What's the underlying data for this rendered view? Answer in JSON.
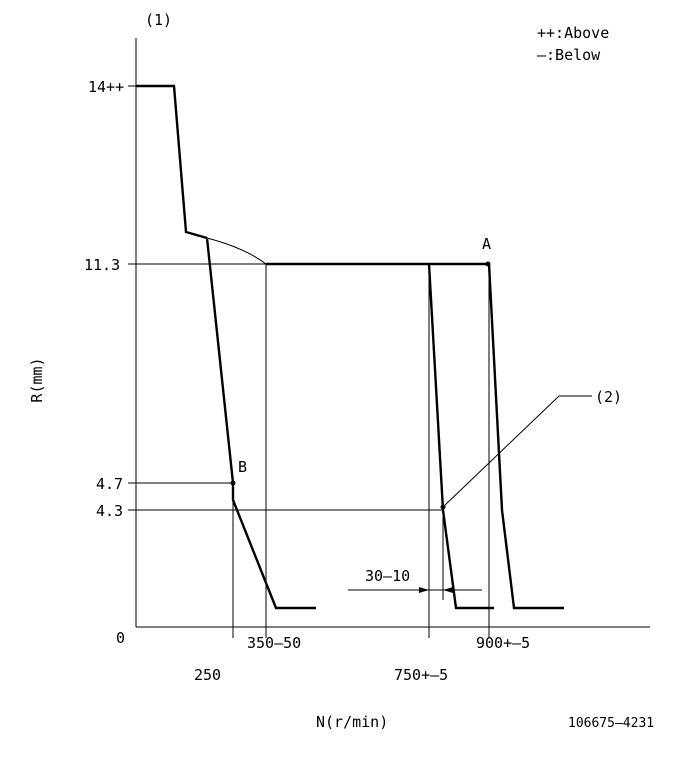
{
  "labels": {
    "marker": "(1)",
    "legend_above": "++:Above",
    "legend_below": "—:Below",
    "y_axis": "R(mm)",
    "x_axis": "N(r/min)",
    "origin": "0",
    "y_14": "14++",
    "y_11_3": "11.3",
    "y_4_7": "4.7",
    "y_4_3": "4.3",
    "x_250": "250",
    "x_350": "350—50",
    "x_750": "750+—5",
    "x_900": "900+—5",
    "point_a": "A",
    "point_b": "B",
    "callout_2": "(2)",
    "delta": "30—10",
    "code": "106675—4231"
  }
}
